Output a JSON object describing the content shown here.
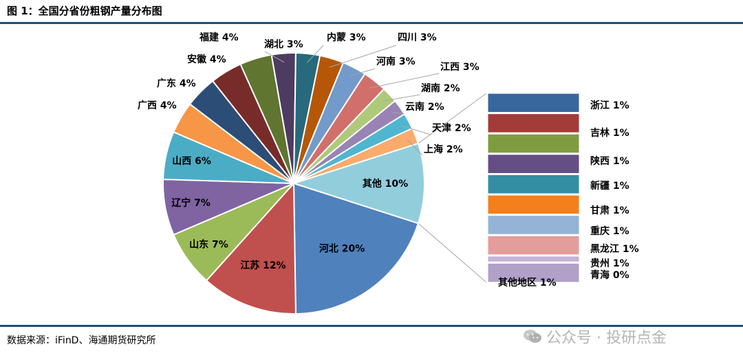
{
  "header": {
    "title": "图 1：全国分省份粗钢产量分布图"
  },
  "footer": {
    "source": "数据来源：iFinD、海通期货研究所"
  },
  "watermark": {
    "text": "公众号 · 投研点金",
    "icon": "wechat-icon"
  },
  "chart_data": {
    "type": "pie-of-pie",
    "title": "",
    "main_slices": [
      {
        "name": "河北",
        "value": 20,
        "label": "20%",
        "color": "#4f81bd"
      },
      {
        "name": "江苏",
        "value": 12,
        "label": "12%",
        "color": "#c0504d"
      },
      {
        "name": "山东",
        "value": 7,
        "label": "7%",
        "color": "#9bbb59"
      },
      {
        "name": "辽宁",
        "value": 7,
        "label": "7%",
        "color": "#8064a2"
      },
      {
        "name": "山西",
        "value": 6,
        "label": "6%",
        "color": "#4bacc6"
      },
      {
        "name": "广西",
        "value": 4,
        "label": "4%",
        "color": "#f79646"
      },
      {
        "name": "广东",
        "value": 4,
        "label": "4%",
        "color": "#2c4d75"
      },
      {
        "name": "安徽",
        "value": 4,
        "label": "4%",
        "color": "#772c2a"
      },
      {
        "name": "福建",
        "value": 4,
        "label": "4%",
        "color": "#5f7530"
      },
      {
        "name": "湖北",
        "value": 3,
        "label": "3%",
        "color": "#4d3b62"
      },
      {
        "name": "内蒙",
        "value": 3,
        "label": "3%",
        "color": "#276a7c"
      },
      {
        "name": "四川",
        "value": 3,
        "label": "3%",
        "color": "#b65708"
      },
      {
        "name": "河南",
        "value": 3,
        "label": "3%",
        "color": "#729aca"
      },
      {
        "name": "江西",
        "value": 3,
        "label": "3%",
        "color": "#d16f6b"
      },
      {
        "name": "湖南",
        "value": 2,
        "label": "2%",
        "color": "#afc97a"
      },
      {
        "name": "云南",
        "value": 2,
        "label": "2%",
        "color": "#9983b5"
      },
      {
        "name": "天津",
        "value": 2,
        "label": "2%",
        "color": "#4fb6d0"
      },
      {
        "name": "上海",
        "value": 2,
        "label": "2%",
        "color": "#f9ab6b"
      },
      {
        "name": "其他",
        "value": 10,
        "label": "10%",
        "color": "#92cddc"
      }
    ],
    "secondary_bars": [
      {
        "name": "浙江",
        "value": 1,
        "label": "1%",
        "color": "#38679d"
      },
      {
        "name": "吉林",
        "value": 1,
        "label": "1%",
        "color": "#a33b38"
      },
      {
        "name": "陕西",
        "value": 1,
        "label": "1%",
        "color": "#7e9c3f"
      },
      {
        "name": "新疆",
        "value": 1,
        "label": "1%",
        "color": "#654e85"
      },
      {
        "name": "甘肃",
        "value": 1,
        "label": "1%",
        "color": "#348ea3"
      },
      {
        "name": "重庆",
        "value": 1,
        "label": "1%",
        "color": "#f47f1b"
      },
      {
        "name": "黑龙江",
        "value": 1,
        "label": "1%",
        "color": "#95b3d7"
      },
      {
        "name": "贵州",
        "value": 1,
        "label": "1%",
        "color": "#e39d9b"
      },
      {
        "name": "青海",
        "value": 0,
        "label": "0%",
        "color": "#c2b2d7"
      },
      {
        "name": "其他地区",
        "value": 1,
        "label": "1%",
        "color": "#b1a0c7"
      }
    ]
  }
}
